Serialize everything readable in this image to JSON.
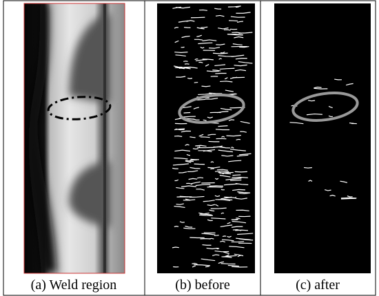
{
  "captions": [
    "(a) Weld region",
    "(b) before",
    "(c) after"
  ]
}
